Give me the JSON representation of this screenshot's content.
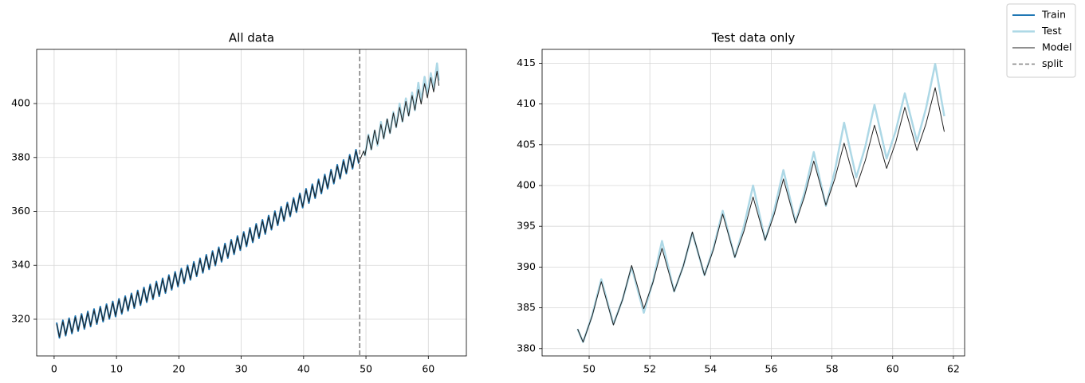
{
  "chart_data": [
    {
      "type": "line",
      "title": "All data",
      "legend": "upper right",
      "x": [
        0.4,
        0.85,
        1.4,
        1.85,
        2.4,
        2.85,
        3.4,
        3.85,
        4.4,
        4.85,
        5.4,
        5.85,
        6.4,
        6.85,
        7.4,
        7.85,
        8.4,
        8.85,
        9.4,
        9.85,
        10.4,
        10.85,
        11.4,
        11.85,
        12.4,
        12.85,
        13.4,
        13.85,
        14.4,
        14.85,
        15.4,
        15.85,
        16.4,
        16.85,
        17.4,
        17.85,
        18.4,
        18.85,
        19.4,
        19.85,
        20.4,
        20.85,
        21.4,
        21.85,
        22.4,
        22.85,
        23.4,
        23.85,
        24.4,
        24.85,
        25.4,
        25.85,
        26.4,
        26.85,
        27.4,
        27.85,
        28.4,
        28.85,
        29.4,
        29.85,
        30.4,
        30.85,
        31.4,
        31.85,
        32.4,
        32.85,
        33.4,
        33.85,
        34.4,
        34.85,
        35.4,
        35.85,
        36.4,
        36.85,
        37.4,
        37.85,
        38.4,
        38.85,
        39.4,
        39.85,
        40.4,
        40.85,
        41.4,
        41.85,
        42.4,
        42.85,
        43.4,
        43.85,
        44.4,
        44.85,
        45.4,
        45.85,
        46.4,
        46.85,
        47.4,
        47.85,
        48.4,
        48.85,
        49.62,
        49.85,
        50.4,
        50.85,
        51.4,
        51.85,
        52.4,
        52.85,
        53.4,
        53.85,
        54.4,
        54.85,
        55.4,
        55.85,
        56.4,
        56.85,
        57.4,
        57.85,
        58.4,
        58.85,
        59.4,
        59.85,
        60.4,
        60.85,
        61.4,
        61.7
      ],
      "series": [
        {
          "name": "Train",
          "color": "#1f77b4",
          "values": [
            318.8,
            313.1,
            319.6,
            313.9,
            320.4,
            314.7,
            321.2,
            315.6,
            322.0,
            316.4,
            322.9,
            317.3,
            323.8,
            318.2,
            324.7,
            319.1,
            325.6,
            320.1,
            326.6,
            321.0,
            327.6,
            322.0,
            328.6,
            323.1,
            329.6,
            324.1,
            330.7,
            325.2,
            331.8,
            326.3,
            332.9,
            327.4,
            334.0,
            328.5,
            335.2,
            329.7,
            336.4,
            330.9,
            337.6,
            332.1,
            338.8,
            333.3,
            340.0,
            334.6,
            341.3,
            335.9,
            342.6,
            337.2,
            343.9,
            338.5,
            345.3,
            339.9,
            346.7,
            341.3,
            348.1,
            342.7,
            349.5,
            344.1,
            350.9,
            345.6,
            352.4,
            347.0,
            353.9,
            348.5,
            355.4,
            350.1,
            356.9,
            351.6,
            358.5,
            353.2,
            360.1,
            354.8,
            361.7,
            356.4,
            363.3,
            358.1,
            365.0,
            359.7,
            366.7,
            361.4,
            368.4,
            363.1,
            370.1,
            364.9,
            371.9,
            366.6,
            373.7,
            368.4,
            375.5,
            370.3,
            377.3,
            372.1,
            379.1,
            374.0,
            381.0,
            375.8,
            382.9,
            377.7,
            null,
            null,
            null,
            null,
            null,
            null,
            null,
            null,
            null,
            null,
            null,
            null,
            null,
            null,
            null,
            null,
            null,
            null,
            null,
            null,
            null,
            null,
            null,
            null,
            null,
            null
          ]
        },
        {
          "name": "Test",
          "color": "#add8e6",
          "values": [
            null,
            null,
            null,
            null,
            null,
            null,
            null,
            null,
            null,
            null,
            null,
            null,
            null,
            null,
            null,
            null,
            null,
            null,
            null,
            null,
            null,
            null,
            null,
            null,
            null,
            null,
            null,
            null,
            null,
            null,
            null,
            null,
            null,
            null,
            null,
            null,
            null,
            null,
            null,
            null,
            null,
            null,
            null,
            null,
            null,
            null,
            null,
            null,
            null,
            null,
            null,
            null,
            null,
            null,
            null,
            null,
            null,
            null,
            null,
            null,
            null,
            null,
            null,
            null,
            null,
            null,
            null,
            null,
            null,
            null,
            null,
            null,
            null,
            null,
            null,
            null,
            null,
            null,
            null,
            null,
            null,
            null,
            null,
            null,
            null,
            null,
            null,
            null,
            null,
            null,
            null,
            null,
            null,
            null,
            null,
            null,
            null,
            null,
            382.4,
            380.8,
            388.5,
            383.0,
            390.0,
            384.4,
            393.2,
            387.0,
            394.2,
            389.0,
            396.9,
            391.2,
            400.0,
            393.3,
            401.9,
            395.5,
            404.1,
            397.5,
            407.7,
            401.0,
            409.9,
            403.3,
            411.3,
            405.4,
            414.9,
            408.5
          ]
        },
        {
          "name": "Model",
          "color": "#222222",
          "values": [
            318.3,
            313.5,
            319.1,
            314.3,
            319.9,
            315.1,
            320.7,
            316.0,
            321.5,
            316.8,
            322.4,
            317.7,
            323.3,
            318.6,
            324.2,
            319.5,
            325.1,
            320.5,
            326.1,
            321.4,
            327.1,
            322.4,
            328.1,
            323.5,
            329.1,
            324.5,
            330.2,
            325.6,
            331.3,
            326.7,
            332.4,
            327.8,
            333.5,
            328.9,
            334.7,
            330.1,
            335.9,
            331.3,
            337.1,
            332.5,
            338.3,
            333.7,
            339.5,
            335.0,
            340.8,
            336.3,
            342.1,
            337.6,
            343.4,
            338.9,
            344.8,
            340.3,
            346.2,
            341.7,
            347.6,
            343.1,
            349.0,
            344.5,
            350.4,
            346.0,
            351.9,
            347.4,
            353.4,
            348.9,
            354.9,
            350.5,
            356.4,
            352.0,
            358.0,
            353.6,
            359.6,
            355.2,
            361.2,
            356.8,
            362.8,
            358.5,
            364.5,
            360.1,
            366.2,
            361.8,
            367.9,
            363.5,
            369.6,
            365.3,
            371.4,
            367.0,
            373.2,
            368.8,
            375.0,
            370.7,
            376.8,
            372.5,
            378.6,
            374.4,
            380.5,
            376.2,
            382.4,
            378.1,
            382.4,
            380.8,
            388.2,
            382.9,
            390.2,
            384.9,
            392.3,
            387.0,
            394.3,
            389.0,
            396.5,
            391.2,
            398.6,
            393.3,
            400.8,
            395.4,
            403.0,
            397.6,
            405.2,
            399.8,
            407.4,
            402.1,
            409.6,
            404.3,
            412.0,
            406.6
          ]
        }
      ],
      "vline": {
        "name": "split",
        "x": 49,
        "color": "#808080"
      },
      "xlim": [
        -2.8,
        66.1
      ],
      "ylim": [
        306.4,
        420.1
      ],
      "xticks": [
        0,
        10,
        20,
        30,
        40,
        50,
        60
      ],
      "yticks": [
        320,
        340,
        360,
        380,
        400
      ],
      "grid": true
    },
    {
      "type": "line",
      "title": "Test data only",
      "x": [
        49.62,
        49.8,
        50.1,
        50.4,
        50.8,
        51.1,
        51.4,
        51.8,
        52.1,
        52.4,
        52.8,
        53.1,
        53.4,
        53.8,
        54.1,
        54.4,
        54.8,
        55.1,
        55.4,
        55.8,
        56.1,
        56.4,
        56.8,
        57.1,
        57.4,
        57.8,
        58.1,
        58.4,
        58.8,
        59.1,
        59.4,
        59.8,
        60.1,
        60.4,
        60.8,
        61.1,
        61.4,
        61.7
      ],
      "series": [
        {
          "name": "Test",
          "color": "#add8e6",
          "values": [
            382.4,
            380.8,
            384.1,
            388.5,
            383.0,
            386.0,
            390.0,
            384.4,
            388.2,
            393.2,
            387.0,
            390.1,
            394.2,
            389.0,
            392.4,
            396.9,
            391.2,
            395.0,
            400.0,
            393.3,
            397.0,
            401.9,
            395.5,
            399.2,
            404.1,
            397.5,
            401.9,
            407.7,
            401.0,
            404.8,
            409.9,
            403.3,
            406.7,
            411.3,
            405.4,
            409.5,
            414.9,
            408.5
          ]
        },
        {
          "name": "Model",
          "color": "#222222",
          "values": [
            382.4,
            380.8,
            384.0,
            388.2,
            382.9,
            386.0,
            390.2,
            384.9,
            388.1,
            392.3,
            387.0,
            390.1,
            394.3,
            389.0,
            392.2,
            396.5,
            391.2,
            394.4,
            398.6,
            393.3,
            396.5,
            400.8,
            395.4,
            398.7,
            403.0,
            397.6,
            400.9,
            405.2,
            399.8,
            403.1,
            407.4,
            402.1,
            405.3,
            409.6,
            404.3,
            407.6,
            412.0,
            406.6
          ]
        }
      ],
      "xlim": [
        48.45,
        62.37
      ],
      "ylim": [
        379.1,
        416.7
      ],
      "xticks": [
        50,
        52,
        54,
        56,
        58,
        60,
        62
      ],
      "yticks": [
        380,
        385,
        390,
        395,
        400,
        405,
        410,
        415
      ],
      "grid": true
    }
  ]
}
